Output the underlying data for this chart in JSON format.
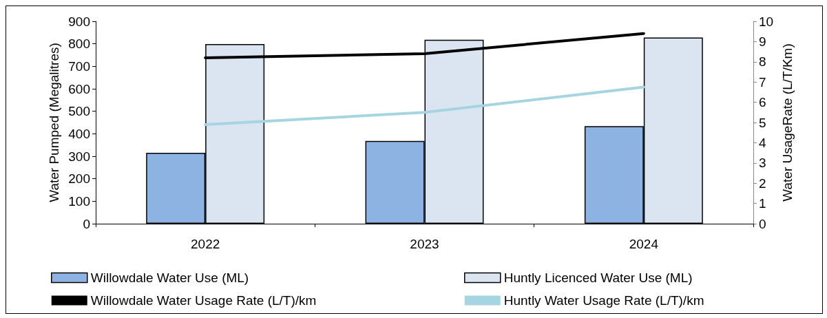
{
  "chart_data": {
    "type": "bar",
    "ylabel": "Water Pumped (Megalitres)",
    "y2label": "Water UsageRate (L/T/Km)",
    "categories": [
      "2022",
      "2023",
      "2024"
    ],
    "series": [
      {
        "name": "Willowdale Water Use (ML)",
        "color": "#8db3e2",
        "values": [
          315,
          368,
          434
        ]
      },
      {
        "name": "Huntly Licenced Water Use (ML)",
        "color": "#dbe5f1",
        "values": [
          799,
          818,
          828
        ]
      },
      {
        "name": "Willowdale Water Usage Rate (L/T)/km",
        "type": "line",
        "axis": "y2",
        "color": "#000000",
        "values": [
          8.2,
          8.4,
          9.4
        ]
      },
      {
        "name": "Huntly Water Usage Rate (L/T)/km",
        "type": "line",
        "axis": "y2",
        "color": "#a5d5e0",
        "values": [
          4.9,
          5.5,
          6.75
        ]
      }
    ],
    "ylim": [
      0,
      900
    ],
    "yticks": [
      0,
      100,
      200,
      300,
      400,
      500,
      600,
      700,
      800,
      900
    ],
    "y2lim": [
      0,
      10
    ],
    "y2ticks": [
      0,
      1,
      2,
      3,
      4,
      5,
      6,
      7,
      8,
      9,
      10
    ],
    "legend": "bottom",
    "marker": "none",
    "line_style": "solid",
    "grid": false
  }
}
